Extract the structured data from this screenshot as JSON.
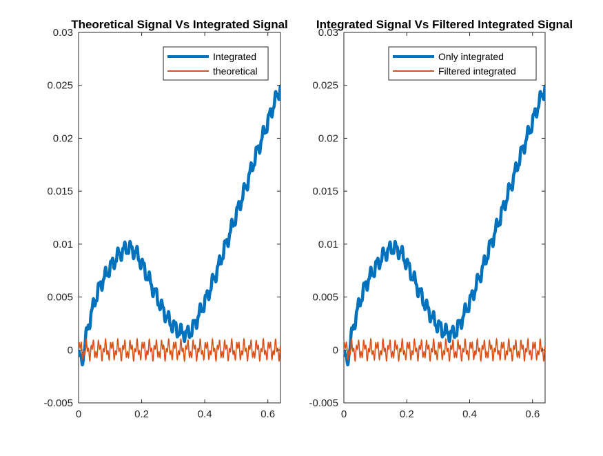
{
  "chart_data": [
    {
      "type": "line",
      "title": "Theoretical Signal Vs Integrated Signal",
      "xlabel": "",
      "ylabel": "",
      "xlim": [
        0,
        0.64
      ],
      "ylim": [
        -0.005,
        0.03
      ],
      "xticks": [
        0,
        0.2,
        0.4,
        0.6
      ],
      "xtick_labels": [
        "0",
        "0.2",
        "0.4",
        "0.6"
      ],
      "yticks": [
        -0.005,
        0,
        0.005,
        0.01,
        0.015,
        0.02,
        0.025,
        0.03
      ],
      "ytick_labels": [
        "-0.005",
        "0",
        "0.005",
        "0.01",
        "0.015",
        "0.02",
        "0.025",
        "0.03"
      ],
      "grid": false,
      "legend_position": "top-right",
      "series": [
        {
          "name": "Integrated",
          "color": "#0072BD",
          "x": [
            0,
            0.01,
            0.02,
            0.03,
            0.05,
            0.07,
            0.1,
            0.13,
            0.155,
            0.18,
            0.2,
            0.23,
            0.26,
            0.29,
            0.32,
            0.345,
            0.36,
            0.38,
            0.41,
            0.44,
            0.47,
            0.5,
            0.53,
            0.56,
            0.59,
            0.62,
            0.64
          ],
          "y": [
            -0.0005,
            -0.0012,
            0.0005,
            0.0022,
            0.0045,
            0.0062,
            0.0078,
            0.0091,
            0.0097,
            0.0093,
            0.0082,
            0.0062,
            0.0042,
            0.0026,
            0.0017,
            0.0015,
            0.0019,
            0.0032,
            0.0052,
            0.0076,
            0.0102,
            0.0128,
            0.0154,
            0.0182,
            0.0207,
            0.0233,
            0.0248
          ]
        },
        {
          "name": "theoretical",
          "color": "#D95319",
          "amplitude": 0.001,
          "x_range": [
            0,
            0.64
          ]
        }
      ]
    },
    {
      "type": "line",
      "title": "Integrated Signal Vs Filtered Integrated Signal",
      "xlabel": "",
      "ylabel": "",
      "xlim": [
        0,
        0.64
      ],
      "ylim": [
        -0.005,
        0.03
      ],
      "xticks": [
        0,
        0.2,
        0.4,
        0.6
      ],
      "xtick_labels": [
        "0",
        "0.2",
        "0.4",
        "0.6"
      ],
      "yticks": [
        -0.005,
        0,
        0.005,
        0.01,
        0.015,
        0.02,
        0.025,
        0.03
      ],
      "ytick_labels": [
        "-0.005",
        "0",
        "0.005",
        "0.01",
        "0.015",
        "0.02",
        "0.025",
        "0.03"
      ],
      "grid": false,
      "legend_position": "top-right",
      "series": [
        {
          "name": "Only integrated",
          "color": "#0072BD",
          "x": [
            0,
            0.01,
            0.02,
            0.03,
            0.05,
            0.07,
            0.1,
            0.13,
            0.155,
            0.18,
            0.2,
            0.23,
            0.26,
            0.29,
            0.32,
            0.345,
            0.36,
            0.38,
            0.41,
            0.44,
            0.47,
            0.5,
            0.53,
            0.56,
            0.59,
            0.62,
            0.64
          ],
          "y": [
            -0.0005,
            -0.0012,
            0.0005,
            0.0022,
            0.0045,
            0.0062,
            0.0078,
            0.0091,
            0.0097,
            0.0093,
            0.0082,
            0.0062,
            0.0042,
            0.0026,
            0.0017,
            0.0015,
            0.0019,
            0.0032,
            0.0052,
            0.0076,
            0.0102,
            0.0128,
            0.0154,
            0.0182,
            0.0207,
            0.0233,
            0.0248
          ]
        },
        {
          "name": "Filtered integrated",
          "color": "#D95319",
          "amplitude": 0.001,
          "x_range": [
            0,
            0.64
          ]
        }
      ]
    }
  ]
}
